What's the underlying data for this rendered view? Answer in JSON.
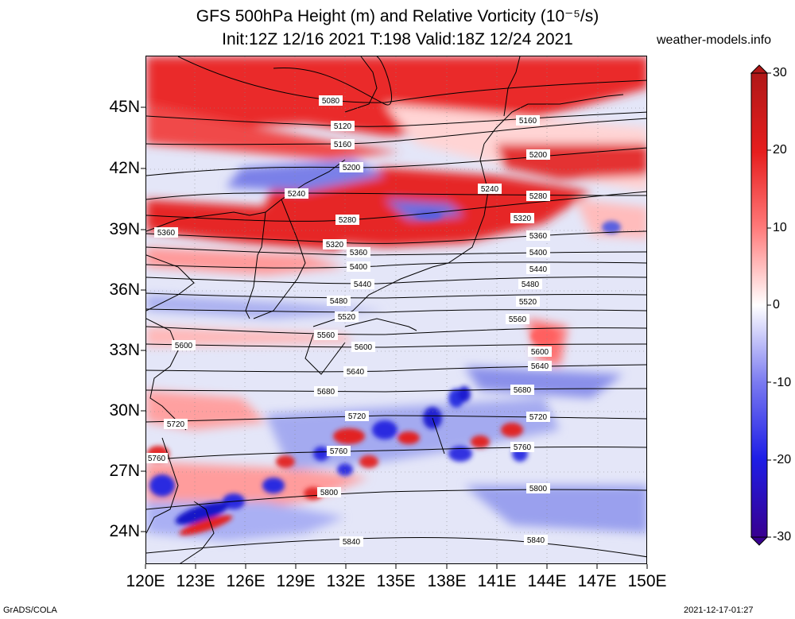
{
  "title": {
    "line1": "GFS 500hPa Height (m) and Relative Vorticity (10⁻⁵/s)",
    "line2": "Init:12Z 12/16 2021 T:198 Valid:18Z 12/24 2021"
  },
  "site": "weather-models.info",
  "lat_labels": [
    "45N",
    "42N",
    "39N",
    "36N",
    "33N",
    "30N",
    "27N",
    "24N"
  ],
  "lon_labels": [
    "120E",
    "123E",
    "126E",
    "129E",
    "132E",
    "135E",
    "138E",
    "141E",
    "144E",
    "147E",
    "150E"
  ],
  "colorbar": {
    "labels": [
      "30",
      "20",
      "10",
      "0",
      "-10",
      "-20",
      "-30"
    ],
    "colors": [
      "#b01818",
      "#e61e1e",
      "#ff7878",
      "#ffffff",
      "#7878f0",
      "#1e1ee6",
      "#380090"
    ]
  },
  "contour_labels": [
    "5080",
    "5120",
    "5160",
    "5200",
    "5240",
    "5280",
    "5320",
    "5360",
    "5400",
    "5440",
    "5480",
    "5520",
    "5560",
    "5600",
    "5640",
    "5680",
    "5720",
    "5760",
    "5800",
    "5840"
  ],
  "footer": {
    "left": "GrADS/COLA",
    "right": "2021-12-17-01:27"
  }
}
